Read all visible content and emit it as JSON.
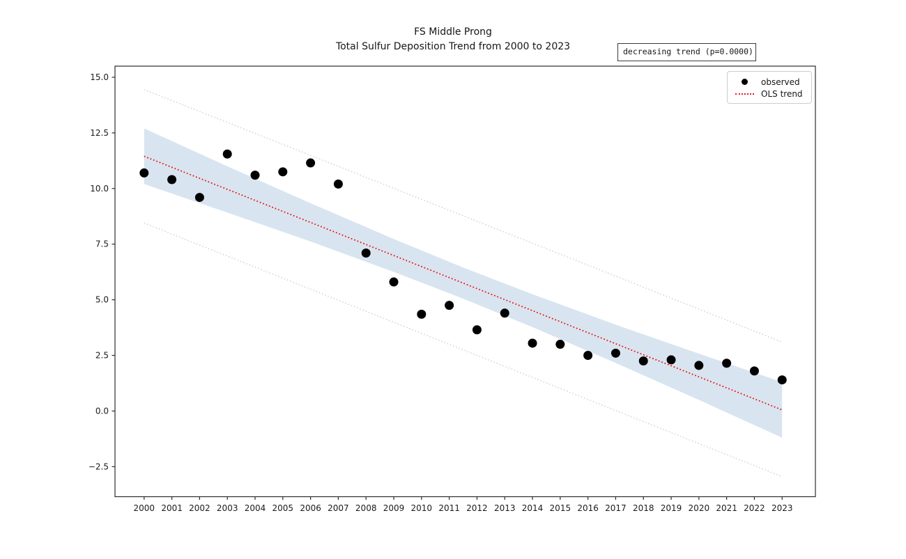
{
  "title": {
    "line1": "FS Middle Prong",
    "line2": "Total Sulfur Deposition Trend from 2000 to 2023"
  },
  "annotation_box": {
    "text": "decreasing trend (p=0.0000)"
  },
  "legend": {
    "position": "upper right",
    "items": [
      {
        "label": "observed",
        "marker": "dot",
        "color": "#000000"
      },
      {
        "label": "OLS trend",
        "marker": "dotted-line",
        "color": "#ee1111"
      }
    ]
  },
  "chart_data": {
    "type": "scatter",
    "title": "FS Middle Prong\nTotal Sulfur Deposition Trend from 2000 to 2023",
    "xlabel": "",
    "ylabel": "",
    "grid": false,
    "legend_position": "upper right",
    "annotation": "decreasing trend (p=0.0000)",
    "xlim": [
      1998.95,
      2024.2
    ],
    "ylim": [
      -3.85,
      15.5
    ],
    "xticks": [
      "2000",
      "2001",
      "2002",
      "2003",
      "2004",
      "2005",
      "2006",
      "2007",
      "2008",
      "2009",
      "2010",
      "2011",
      "2012",
      "2013",
      "2014",
      "2015",
      "2016",
      "2017",
      "2018",
      "2019",
      "2020",
      "2021",
      "2022",
      "2023"
    ],
    "yticks": [
      "15.0",
      "12.5",
      "10.0",
      "7.5",
      "5.0",
      "2.5",
      "0.0",
      "−2.5"
    ],
    "ytick_values": [
      15.0,
      12.5,
      10.0,
      7.5,
      5.0,
      2.5,
      0.0,
      -2.5
    ],
    "observed": {
      "name": "observed",
      "years": [
        2000,
        2001,
        2002,
        2003,
        2004,
        2005,
        2006,
        2007,
        2008,
        2009,
        2010,
        2011,
        2012,
        2013,
        2014,
        2015,
        2016,
        2017,
        2018,
        2019,
        2020,
        2021,
        2022,
        2023
      ],
      "values": [
        10.7,
        10.4,
        9.6,
        11.55,
        10.6,
        10.75,
        11.15,
        10.2,
        7.1,
        5.8,
        4.35,
        4.75,
        3.65,
        4.4,
        3.05,
        3.0,
        2.5,
        2.6,
        2.25,
        2.3,
        2.05,
        2.15,
        1.8,
        1.4
      ]
    },
    "ols_trend": {
      "name": "OLS trend",
      "style": "dotted",
      "x": [
        2000,
        2023
      ],
      "y": [
        11.45,
        0.05
      ],
      "slope_per_year": -0.496
    },
    "confidence_band": {
      "years": [
        2000,
        2003,
        2006,
        2009,
        2011.5,
        2014,
        2017,
        2020,
        2023
      ],
      "upper": [
        12.7,
        11.0,
        9.34,
        7.73,
        6.45,
        5.25,
        3.88,
        2.58,
        1.3
      ],
      "lower": [
        10.2,
        8.92,
        7.62,
        6.25,
        5.05,
        3.77,
        2.16,
        0.5,
        -1.2
      ]
    },
    "prediction_interval": {
      "style": "dotted",
      "upper": {
        "x": [
          2000,
          2023
        ],
        "y": [
          14.45,
          3.1
        ]
      },
      "lower": {
        "x": [
          2000,
          2023
        ],
        "y": [
          8.45,
          -2.95
        ]
      }
    },
    "colors": {
      "observed": "#000000",
      "trend": "#ee1111",
      "band": "#d8e5f0",
      "prediction": "#c7d9ea",
      "frame": "#2b2b2b",
      "text": "#1a1a1a"
    }
  }
}
